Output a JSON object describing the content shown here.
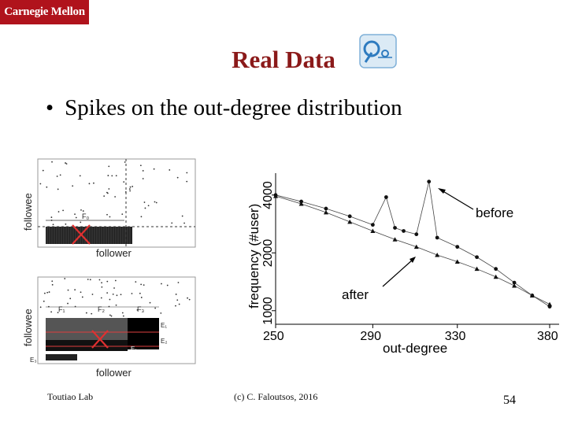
{
  "header": {
    "logo_text": "Carnegie Mellon",
    "title": "Real Data"
  },
  "bullet": {
    "text": "Spikes on the out-degree distribution"
  },
  "left_plots": {
    "top": {
      "ylabel": "followee",
      "xlabel": "follower",
      "block_label": "F₀"
    },
    "bottom": {
      "ylabel": "followee",
      "xlabel": "follower",
      "col_labels": [
        "F₁",
        "F₂",
        "F₃"
      ],
      "row_labels": [
        "E₁",
        "E₂",
        "E₃",
        "E₁"
      ]
    }
  },
  "chart_data": {
    "type": "scatter",
    "xlabel": "out-degree",
    "ylabel": "frequency (#user)",
    "xticks": [
      250,
      290,
      330,
      380
    ],
    "yticks": [
      1000,
      2000,
      4000
    ],
    "xlim": [
      250,
      380
    ],
    "scale": "log-log",
    "annotations": [
      "before",
      "after"
    ],
    "series": [
      {
        "name": "before",
        "marker": "circle",
        "x": [
          250,
          260,
          270,
          280,
          290,
          296,
          300,
          304,
          310,
          316,
          320,
          330,
          340,
          350,
          360,
          370,
          380
        ],
        "y": [
          4000,
          3700,
          3400,
          3100,
          2800,
          3900,
          2700,
          2600,
          2500,
          4700,
          2400,
          2150,
          1900,
          1650,
          1400,
          1200,
          1050
        ]
      },
      {
        "name": "after",
        "marker": "triangle",
        "x": [
          250,
          260,
          270,
          280,
          290,
          300,
          310,
          320,
          330,
          340,
          350,
          360,
          370,
          380
        ],
        "y": [
          3950,
          3600,
          3250,
          2900,
          2600,
          2350,
          2150,
          1950,
          1800,
          1650,
          1500,
          1350,
          1200,
          1080
        ]
      }
    ]
  },
  "footer": {
    "left": "Toutiao Lab",
    "center": "(c) C. Faloutsos, 2016",
    "page": "54"
  }
}
